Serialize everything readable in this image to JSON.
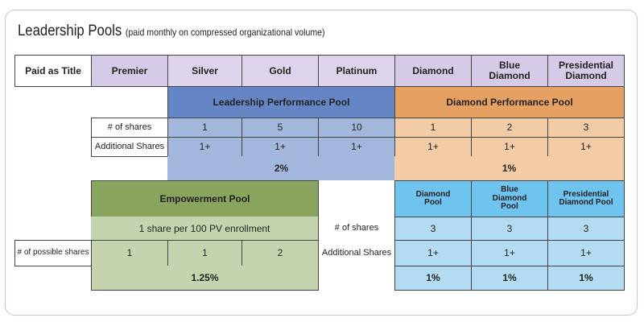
{
  "title": {
    "main": "Leadership Pools",
    "sub": "(paid monthly on compressed organizational volume)"
  },
  "header": [
    "Paid as Title",
    "Premier",
    "Silver",
    "Gold",
    "Platinum",
    "Diamond",
    "Blue Diamond",
    "Presidential Diamond"
  ],
  "leadership_pool": {
    "label": "Leadership Performance Pool",
    "shares_label": "# of shares",
    "additional_label": "Additional Shares",
    "shares": [
      "1",
      "5",
      "10"
    ],
    "additional": [
      "1+",
      "1+",
      "1+"
    ],
    "percent": "2%"
  },
  "diamond_pool": {
    "label": "Diamond Performance Pool",
    "shares": [
      "1",
      "2",
      "3"
    ],
    "additional": [
      "1+",
      "1+",
      "1+"
    ],
    "percent": "1%"
  },
  "empowerment_pool": {
    "label": "Empowerment Pool",
    "rule": "1 share per 100 PV enrollment",
    "possible_label": "# of possible shares",
    "possible": [
      "1",
      "1",
      "2"
    ],
    "percent": "1.25%"
  },
  "diamond_sub_pools": {
    "headers": [
      "Diamond Pool",
      "Blue Diamond Pool",
      "Presidential Diamond Pool"
    ],
    "shares_label": "# of shares",
    "additional_label": "Additional Shares",
    "shares": [
      "3",
      "3",
      "3"
    ],
    "additional": [
      "1+",
      "1+",
      "1+"
    ],
    "percents": [
      "1%",
      "1%",
      "1%"
    ]
  }
}
